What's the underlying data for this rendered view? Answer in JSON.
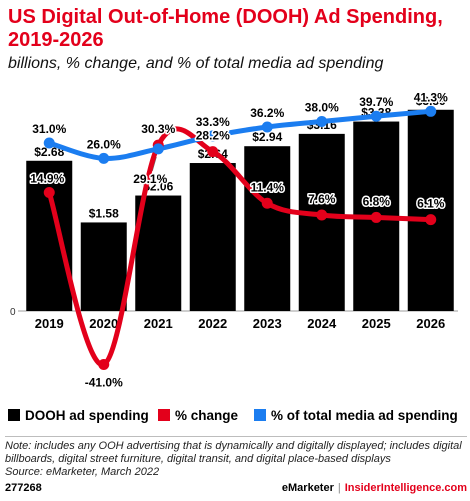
{
  "header": {
    "title": "US Digital Out-of-Home (DOOH) Ad Spending, 2019-2026",
    "subtitle": "billions, % change, and % of total media ad spending"
  },
  "chart_data": {
    "type": "bar",
    "categories": [
      "2019",
      "2020",
      "2021",
      "2022",
      "2023",
      "2024",
      "2025",
      "2026"
    ],
    "zero_label": "0",
    "bar_max": 3.8,
    "pct_range": [
      -48,
      44
    ],
    "series": [
      {
        "name": "DOOH ad spending",
        "kind": "bar",
        "color": "#000000",
        "values": [
          2.68,
          1.58,
          2.06,
          2.64,
          2.94,
          3.16,
          3.38,
          3.59
        ],
        "labels": [
          "$2.68",
          "$1.58",
          "$2.06",
          "$2.64",
          "$2.94",
          "$3.16",
          "$3.38",
          "$3.59"
        ]
      },
      {
        "name": "% change",
        "kind": "line",
        "color": "#e3001b",
        "values": [
          14.9,
          -41.0,
          30.3,
          28.2,
          11.4,
          7.6,
          6.8,
          6.1
        ],
        "labels": [
          "14.9%",
          "-41.0%",
          "30.3%",
          "28.2%",
          "11.4%",
          "7.6%",
          "6.8%",
          "6.1%"
        ]
      },
      {
        "name": "% of total media ad spending",
        "kind": "line",
        "color": "#1b7df0",
        "values": [
          31.0,
          26.0,
          29.1,
          33.3,
          36.2,
          38.0,
          39.7,
          41.3
        ],
        "labels": [
          "31.0%",
          "26.0%",
          "29.1%",
          "33.3%",
          "36.2%",
          "38.0%",
          "39.7%",
          "41.3%"
        ]
      }
    ]
  },
  "legend": {
    "spending": "DOOH ad spending",
    "change": "% change",
    "share": "% of total media ad spending"
  },
  "notes": {
    "note": "Note: includes any OOH advertising that is dynamically and digitally displayed; includes digital billboards, digital street furniture, digital transit, and digital place-based displays",
    "source": "Source: eMarketer, March 2022"
  },
  "footer": {
    "id": "277268",
    "brand_a": "eMarketer",
    "separator": "|",
    "brand_b": "InsiderIntelligence.com"
  }
}
